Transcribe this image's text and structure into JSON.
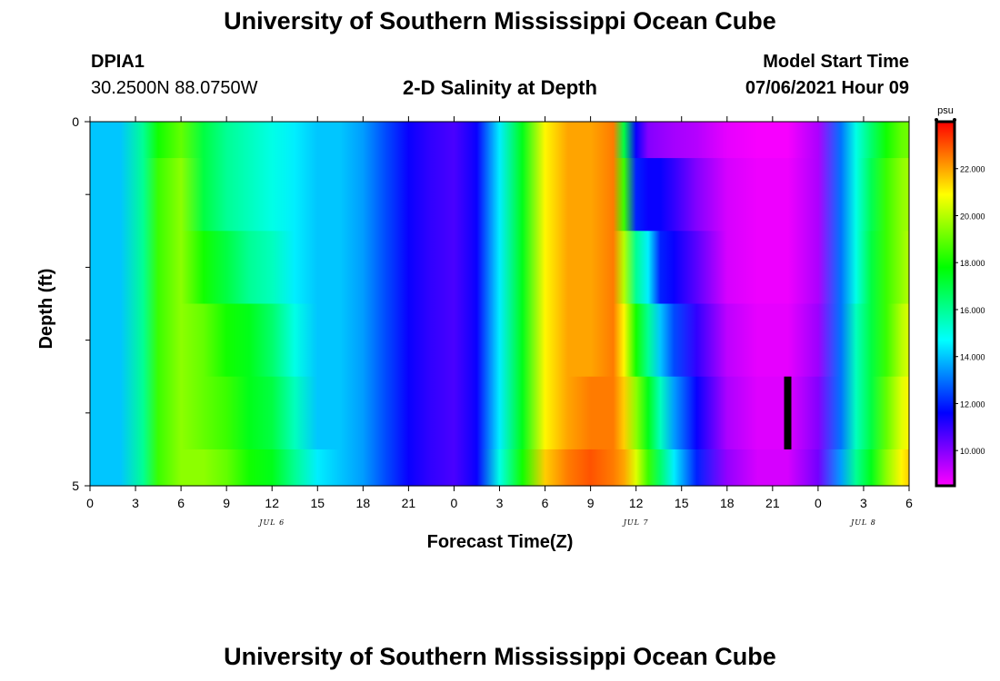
{
  "header": {
    "main_title": "University of Southern Mississippi Ocean Cube",
    "station_id": "DPIA1",
    "coordinates": "30.2500N  88.0750W",
    "plot_title": "2-D Salinity at Depth",
    "model_label": "Model Start Time",
    "model_time": "07/06/2021 Hour 09"
  },
  "footer": {
    "title": "University of Southern Mississippi Ocean Cube"
  },
  "chart_data": {
    "type": "heatmap",
    "title": "2-D Salinity at Depth",
    "xlabel": "Forecast Time(Z)",
    "ylabel": "Depth (ft)",
    "x_unit": "hours since 2021-07-06 00Z",
    "xlim": [
      0,
      54
    ],
    "ylim": [
      0,
      5
    ],
    "x_tick_values": [
      0,
      3,
      6,
      9,
      12,
      15,
      18,
      21,
      24,
      27,
      30,
      33,
      36,
      39,
      42,
      45,
      48,
      51,
      54
    ],
    "x_tick_labels": [
      "0",
      "3",
      "6",
      "9",
      "12",
      "15",
      "18",
      "21",
      "0",
      "3",
      "6",
      "9",
      "12",
      "15",
      "18",
      "21",
      "0",
      "3",
      "6"
    ],
    "y_tick_values": [
      0,
      5
    ],
    "y_tick_labels": [
      "0",
      "5"
    ],
    "y_minor_ticks": [
      1,
      2,
      3,
      4
    ],
    "day_labels": [
      {
        "x": 12,
        "text": "JUL 6"
      },
      {
        "x": 36,
        "text": "JUL 7"
      },
      {
        "x": 51,
        "text": "JUL 8"
      }
    ],
    "depth_layers": [
      [
        0,
        0.5
      ],
      [
        0.5,
        1.5
      ],
      [
        1.5,
        2.5
      ],
      [
        2.5,
        3.5
      ],
      [
        3.5,
        4.5
      ],
      [
        4.5,
        5
      ]
    ],
    "salinity_columns": {
      "hours": [
        0,
        2,
        3.5,
        4.5,
        6,
        7.5,
        9,
        10.5,
        12,
        13.5,
        15,
        16.5,
        18,
        19.5,
        21,
        22.5,
        24,
        25.5,
        27,
        28.5,
        30,
        31.5,
        33,
        34.5,
        35.2,
        36,
        36.8,
        37.6,
        38.5,
        40,
        42,
        44,
        46,
        48,
        49.5,
        50.5,
        51.5,
        52.5,
        53.5,
        54
      ],
      "layer_1": [
        14,
        14,
        16,
        18,
        19,
        17,
        16,
        15.5,
        15,
        14.5,
        14,
        14,
        13.5,
        12.5,
        11.5,
        11,
        10.7,
        11.5,
        14.5,
        17.5,
        21,
        22,
        22,
        22.5,
        17,
        11.5,
        10,
        9.8,
        9.6,
        9.4,
        8.8,
        8.6,
        8.6,
        9.5,
        13,
        15,
        16.5,
        18,
        19,
        19.2
      ],
      "layer_2": [
        14,
        14,
        16,
        18.5,
        19.5,
        17,
        16,
        15.5,
        15,
        14.5,
        14,
        14,
        13.5,
        12.5,
        11.5,
        11,
        10.7,
        11.5,
        14.5,
        17.5,
        21,
        22,
        22,
        22.5,
        18.5,
        12,
        11.5,
        11.5,
        11,
        10,
        9,
        8.7,
        8.7,
        9.5,
        13,
        15,
        16.8,
        18.5,
        19.5,
        19.8
      ],
      "layer_3": [
        14,
        14,
        16,
        18.5,
        19.5,
        18,
        17,
        16,
        15.5,
        14.5,
        14,
        14,
        13.5,
        12.5,
        11.5,
        11,
        10.7,
        11.5,
        14.5,
        17.5,
        21,
        22,
        22,
        22.5,
        20,
        16,
        14.5,
        12,
        11.5,
        10.5,
        9,
        8.7,
        8.7,
        9.5,
        13,
        15,
        17,
        18.5,
        19.5,
        20
      ],
      "layer_4": [
        14,
        14,
        16,
        18.5,
        19.5,
        19,
        18,
        17.5,
        16.5,
        15,
        14,
        14,
        13.5,
        12.5,
        11.5,
        11,
        10.7,
        11.5,
        14.5,
        17.5,
        21,
        22,
        22,
        22.5,
        21,
        18,
        16,
        14,
        12.5,
        11,
        9.3,
        8.8,
        8.8,
        9.7,
        13,
        15.5,
        17,
        18.5,
        20,
        20.5
      ],
      "layer_5": [
        14,
        14,
        16,
        18.5,
        19.5,
        19,
        18.5,
        17.5,
        17,
        15.5,
        14,
        14,
        13.5,
        12.5,
        11.5,
        11,
        10.7,
        11.5,
        14.5,
        17.5,
        21,
        22,
        22.5,
        22.5,
        21.5,
        19.5,
        17.5,
        15.5,
        13.5,
        11.5,
        9.5,
        8.9,
        8.9,
        10,
        13,
        15.5,
        17,
        19,
        20.5,
        21
      ],
      "layer_6": [
        14,
        14,
        16,
        18.5,
        19.5,
        19.5,
        19,
        18,
        17.5,
        16,
        14.5,
        14,
        13.5,
        12.5,
        11.5,
        11,
        10.7,
        11.5,
        15,
        18,
        21.5,
        22.5,
        23,
        22.5,
        22,
        20.5,
        18.5,
        16.5,
        14.5,
        12,
        9.8,
        9,
        9,
        10.2,
        13.5,
        16,
        17.5,
        19.5,
        21,
        21.5
      ]
    },
    "marker": {
      "x": 46,
      "depth_range": [
        3.5,
        4.5
      ],
      "color": "#000000"
    },
    "colorbar": {
      "unit": "psu",
      "min": 8.5,
      "max": 24,
      "tick_values": [
        10,
        12,
        14,
        16,
        18,
        20,
        22
      ],
      "tick_labels": [
        "10.000",
        "12.000",
        "14.000",
        "16.000",
        "18.000",
        "20.000",
        "22.000"
      ]
    }
  }
}
